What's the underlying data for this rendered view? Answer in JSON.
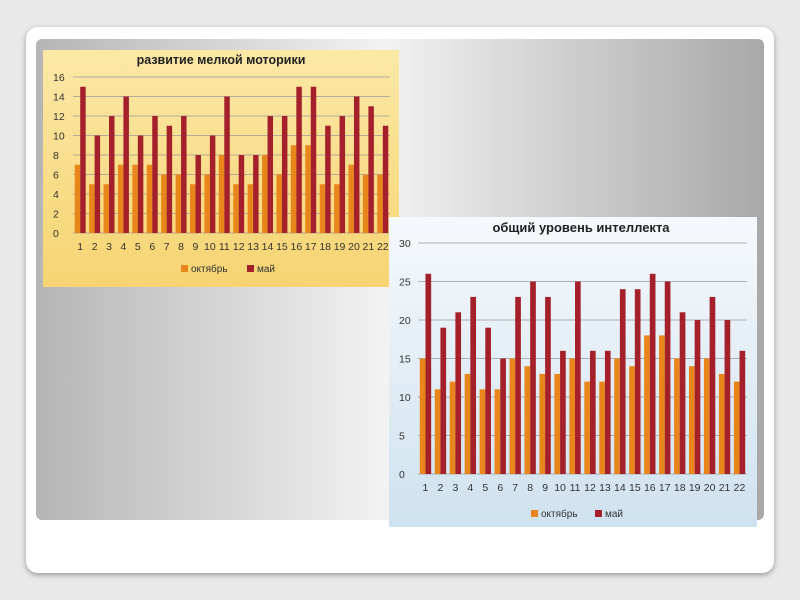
{
  "colors": {
    "october": "#e8861c",
    "may": "#a4202b",
    "gridline": "#9a9a9a"
  },
  "chart_data": [
    {
      "type": "bar",
      "title": "развитие мелкой моторики",
      "xlabel": "",
      "ylabel": "",
      "categories": [
        "1",
        "2",
        "3",
        "4",
        "5",
        "6",
        "7",
        "8",
        "9",
        "10",
        "11",
        "12",
        "13",
        "14",
        "15",
        "16",
        "17",
        "18",
        "19",
        "20",
        "21",
        "22"
      ],
      "ylim": [
        0,
        16
      ],
      "yticks": [
        "0",
        "2",
        "4",
        "6",
        "8",
        "10",
        "12",
        "14",
        "16"
      ],
      "grid": true,
      "legend_position": "bottom",
      "series": [
        {
          "name": "октябрь",
          "values": [
            7,
            5,
            5,
            7,
            7,
            7,
            6,
            6,
            5,
            6,
            8,
            5,
            5,
            8,
            6,
            9,
            9,
            5,
            5,
            7,
            6,
            6
          ]
        },
        {
          "name": "май",
          "values": [
            15,
            10,
            12,
            14,
            10,
            12,
            11,
            12,
            8,
            10,
            14,
            8,
            8,
            12,
            12,
            15,
            15,
            11,
            12,
            14,
            13,
            11
          ]
        }
      ]
    },
    {
      "type": "bar",
      "title": "общий уровень интеллекта",
      "xlabel": "",
      "ylabel": "",
      "categories": [
        "1",
        "2",
        "3",
        "4",
        "5",
        "6",
        "7",
        "8",
        "9",
        "10",
        "11",
        "12",
        "13",
        "14",
        "15",
        "16",
        "17",
        "18",
        "19",
        "20",
        "21",
        "22"
      ],
      "ylim": [
        0,
        30
      ],
      "yticks": [
        "0",
        "5",
        "10",
        "15",
        "20",
        "25",
        "30"
      ],
      "grid": true,
      "legend_position": "bottom",
      "series": [
        {
          "name": "октябрь",
          "values": [
            15,
            11,
            12,
            13,
            11,
            11,
            15,
            14,
            13,
            13,
            15,
            12,
            12,
            15,
            14,
            18,
            18,
            15,
            14,
            15,
            13,
            12
          ]
        },
        {
          "name": "май",
          "values": [
            26,
            19,
            21,
            23,
            19,
            15,
            23,
            25,
            23,
            16,
            25,
            16,
            16,
            24,
            24,
            26,
            25,
            21,
            20,
            23,
            20,
            16
          ]
        }
      ]
    }
  ]
}
